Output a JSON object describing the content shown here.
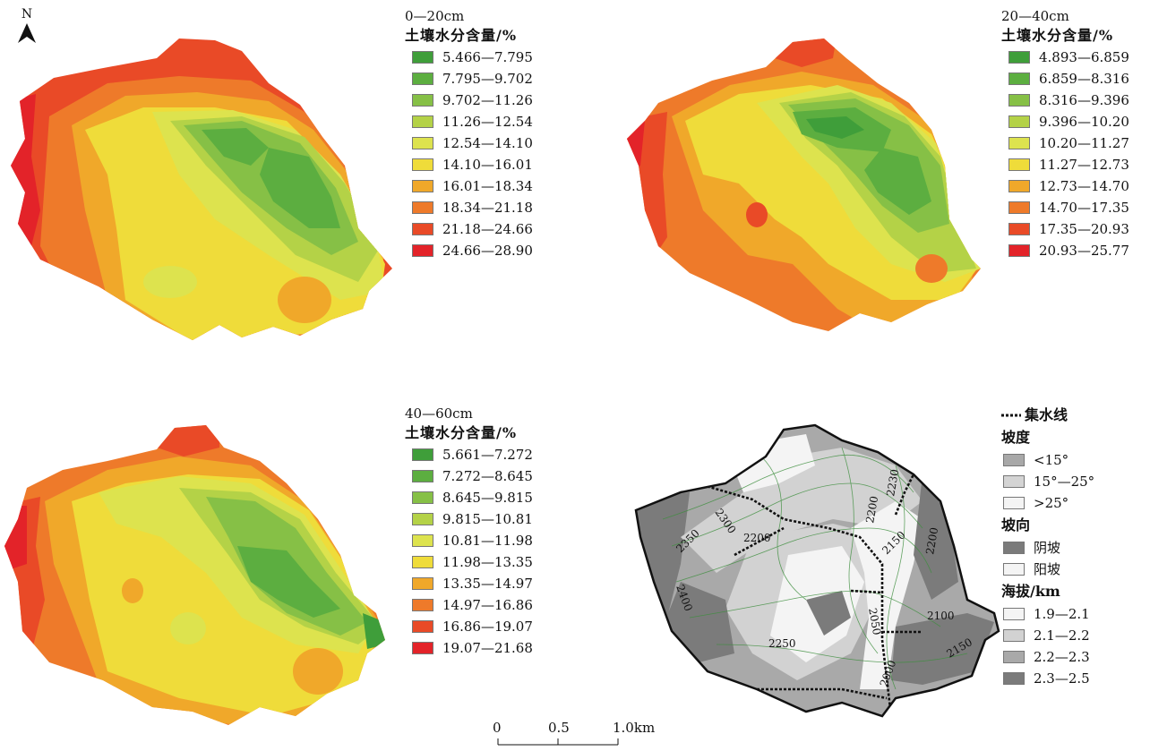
{
  "north": {
    "label": "N"
  },
  "legend1": {
    "depth": "0—20cm",
    "title": "土壤水分含量/%",
    "classes": [
      {
        "label": "5.466—7.795",
        "color": "#3f9e3a"
      },
      {
        "label": "7.795—9.702",
        "color": "#5cae40"
      },
      {
        "label": "9.702—11.26",
        "color": "#86c046"
      },
      {
        "label": "11.26—12.54",
        "color": "#b4d247"
      },
      {
        "label": "12.54—14.10",
        "color": "#dde34e"
      },
      {
        "label": "14.10—16.01",
        "color": "#efdc3a"
      },
      {
        "label": "16.01—18.34",
        "color": "#f0a82a"
      },
      {
        "label": "18.34—21.18",
        "color": "#ee7a2a"
      },
      {
        "label": "21.18—24.66",
        "color": "#e94a27"
      },
      {
        "label": "24.66—28.90",
        "color": "#e32329"
      }
    ]
  },
  "legend2": {
    "depth": "20—40cm",
    "title": "土壤水分含量/%",
    "classes": [
      {
        "label": "4.893—6.859",
        "color": "#3f9e3a"
      },
      {
        "label": "6.859—8.316",
        "color": "#5cae40"
      },
      {
        "label": "8.316—9.396",
        "color": "#86c046"
      },
      {
        "label": "9.396—10.20",
        "color": "#b4d247"
      },
      {
        "label": "10.20—11.27",
        "color": "#dde34e"
      },
      {
        "label": "11.27—12.73",
        "color": "#efdc3a"
      },
      {
        "label": "12.73—14.70",
        "color": "#f0a82a"
      },
      {
        "label": "14.70—17.35",
        "color": "#ee7a2a"
      },
      {
        "label": "17.35—20.93",
        "color": "#e94a27"
      },
      {
        "label": "20.93—25.77",
        "color": "#e32329"
      }
    ]
  },
  "legend3": {
    "depth": "40—60cm",
    "title": "土壤水分含量/%",
    "classes": [
      {
        "label": "5.661—7.272",
        "color": "#3f9e3a"
      },
      {
        "label": "7.272—8.645",
        "color": "#5cae40"
      },
      {
        "label": "8.645—9.815",
        "color": "#86c046"
      },
      {
        "label": "9.815—10.81",
        "color": "#b4d247"
      },
      {
        "label": "10.81—11.98",
        "color": "#dde34e"
      },
      {
        "label": "11.98—13.35",
        "color": "#efdc3a"
      },
      {
        "label": "13.35—14.97",
        "color": "#f0a82a"
      },
      {
        "label": "14.97—16.86",
        "color": "#ee7a2a"
      },
      {
        "label": "16.86—19.07",
        "color": "#e94a27"
      },
      {
        "label": "19.07—21.68",
        "color": "#e32329"
      }
    ]
  },
  "legend4": {
    "catchment": "集水线",
    "slope_title": "坡度",
    "slope": [
      {
        "label": "<15°",
        "color": "#a8a8a8"
      },
      {
        "label": "15°—25°",
        "color": "#d4d4d4"
      },
      {
        "label": ">25°",
        "color": "#f4f4f4"
      }
    ],
    "aspect_title": "坡向",
    "aspect": [
      {
        "label": "阴坡",
        "color": "#7b7b7b"
      },
      {
        "label": "阳坡",
        "color": "#f4f4f4"
      }
    ],
    "elev_title": "海拔/km",
    "elevation": [
      {
        "label": "1.9—2.1",
        "color": "#f4f4f4"
      },
      {
        "label": "2.1—2.2",
        "color": "#d2d2d2"
      },
      {
        "label": "2.2—2.3",
        "color": "#a9a9a9"
      },
      {
        "label": "2.3—2.5",
        "color": "#7b7b7b"
      }
    ]
  },
  "contours": [
    "2300",
    "2350",
    "2400",
    "2200",
    "2230",
    "2200",
    "2150",
    "2200",
    "2250",
    "2050",
    "2100",
    "2150",
    "2000"
  ],
  "scale": {
    "ticks": [
      "0",
      "0.5",
      "1.0km"
    ]
  }
}
